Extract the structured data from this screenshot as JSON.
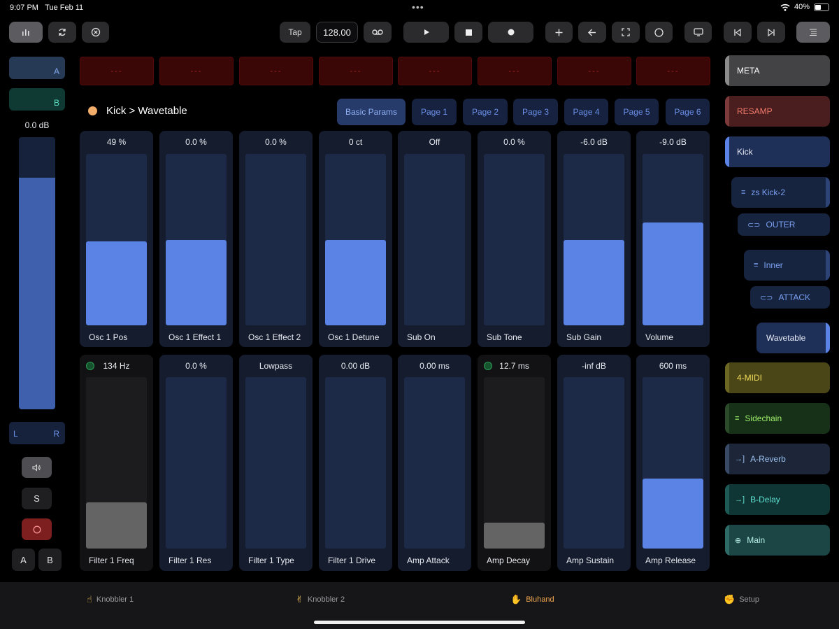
{
  "status": {
    "time": "9:07 PM",
    "date": "Tue Feb 11",
    "battery": "40%"
  },
  "toolbar": {
    "tap_label": "Tap",
    "tempo": "128.00",
    "icons": [
      "bars-icon",
      "loop-icon",
      "stop-circle-icon",
      "voicemail-icon",
      "play-icon",
      "stop-icon",
      "record-icon",
      "plus-icon",
      "arrow-left-icon",
      "fullscreen-icon",
      "circle-icon",
      "screen-icon",
      "skip-back-icon",
      "skip-forward-icon",
      "list-icon"
    ]
  },
  "left": {
    "a_label": "A",
    "b_label": "B",
    "db_readout": "0.0 dB",
    "meter_level": 0.85,
    "pan_l": "L",
    "pan_r": "R",
    "solo_label": "S",
    "a2_label": "A",
    "b2_label": "B",
    "colors": {
      "a": "#273a55",
      "b": "#0e3a33",
      "meter": "#3e60ad",
      "arm": "#7d1f1f"
    }
  },
  "clips": [
    "---",
    "---",
    "---",
    "---",
    "---",
    "---",
    "---",
    "---"
  ],
  "breadcrumb": {
    "text": "Kick > Wavetable",
    "dot_color": "#f3ad6a"
  },
  "page_tabs": [
    "Basic Params",
    "Page 1",
    "Page 2",
    "Page 3",
    "Page 4",
    "Page 5",
    "Page 6"
  ],
  "params_row1": [
    {
      "value": "49 %",
      "label": "Osc 1 Pos",
      "level": 0.49
    },
    {
      "value": "0.0 %",
      "label": "Osc 1 Effect 1",
      "level": 0.5
    },
    {
      "value": "0.0 %",
      "label": "Osc 1 Effect 2",
      "level": 0.0
    },
    {
      "value": "0 ct",
      "label": "Osc 1 Detune",
      "level": 0.5
    },
    {
      "value": "Off",
      "label": "Sub On",
      "level": 0.0
    },
    {
      "value": "0.0 %",
      "label": "Sub Tone",
      "level": 0.0
    },
    {
      "value": "-6.0 dB",
      "label": "Sub Gain",
      "level": 0.5
    },
    {
      "value": "-9.0 dB",
      "label": "Volume",
      "level": 0.6
    }
  ],
  "params_row2": [
    {
      "value": "134 Hz",
      "label": "Filter 1 Freq",
      "level": 0.27,
      "gray": true,
      "led": true
    },
    {
      "value": "0.0 %",
      "label": "Filter 1 Res",
      "level": 0.0
    },
    {
      "value": "Lowpass",
      "label": "Filter 1 Type",
      "level": 0.0
    },
    {
      "value": "0.00 dB",
      "label": "Filter 1 Drive",
      "level": 0.0
    },
    {
      "value": "0.00 ms",
      "label": "Amp Attack",
      "level": 0.0
    },
    {
      "value": "12.7 ms",
      "label": "Amp Decay",
      "level": 0.15,
      "gray": true,
      "led": true
    },
    {
      "value": "-inf dB",
      "label": "Amp Sustain",
      "level": 0.0
    },
    {
      "value": "600 ms",
      "label": "Amp Release",
      "level": 0.41
    }
  ],
  "tracks": [
    {
      "label": "META",
      "bg": "#434345",
      "color": "#ffffff",
      "edge": "#8a8a8a",
      "icon": ""
    },
    {
      "label": "RESAMP",
      "bg": "#4a1e1e",
      "color": "#f07a6c",
      "edge": "#7d3a3a",
      "icon": ""
    },
    {
      "label": "Kick",
      "bg": "#1e2f58",
      "color": "#e8ecf7",
      "edge": "#5b83e5",
      "icon": ""
    },
    {
      "label": "zs Kick-2",
      "bg": "#172440",
      "color": "#7aa0f0",
      "edge": "#2d4275",
      "icon": "≡"
    },
    {
      "label": "OUTER",
      "bg": "#172440",
      "color": "#7aa0f0",
      "edge": "",
      "icon": "⊂⊃"
    },
    {
      "label": "Inner",
      "bg": "#172440",
      "color": "#7aa0f0",
      "edge": "#2d4275",
      "icon": "≡"
    },
    {
      "label": "ATTACK",
      "bg": "#172440",
      "color": "#7aa0f0",
      "edge": "",
      "icon": "⊂⊃"
    },
    {
      "label": "Wavetable",
      "bg": "#1e2f58",
      "color": "#e8ecf7",
      "edge": "#5b83e5",
      "icon": ""
    },
    {
      "label": "4-MIDI",
      "bg": "#4a4617",
      "color": "#f0dc5a",
      "edge": "#6c6623",
      "icon": ""
    },
    {
      "label": "Sidechain",
      "bg": "#173018",
      "color": "#9ef06a",
      "edge": "#2a4a2a",
      "icon": "≡"
    },
    {
      "label": "A-Reverb",
      "bg": "#1c2638",
      "color": "#9cc0ee",
      "edge": "#384a66",
      "icon": "→]"
    },
    {
      "label": "B-Delay",
      "bg": "#0f3535",
      "color": "#5fe0d0",
      "edge": "#1e5a55",
      "icon": "→]"
    },
    {
      "label": "Main",
      "bg": "#1c4545",
      "color": "#b6f0e6",
      "edge": "#2e6a66",
      "icon": "⊕"
    }
  ],
  "bottom_nav": [
    {
      "icon": "☝",
      "label": "Knobbler 1"
    },
    {
      "icon": "✌",
      "label": "Knobbler 2"
    },
    {
      "icon": "✋",
      "label": "Bluhand"
    },
    {
      "icon": "✊",
      "label": "Setup"
    }
  ]
}
